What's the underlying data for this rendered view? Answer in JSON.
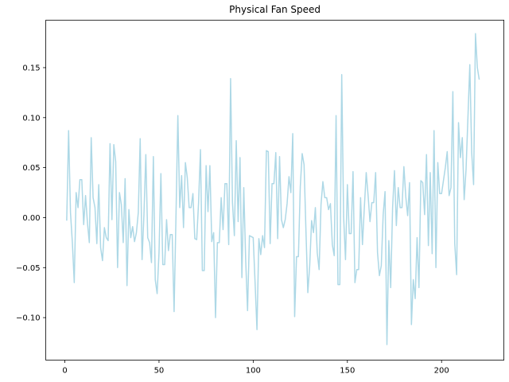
{
  "chart_data": {
    "type": "line",
    "title": "Physical Fan Speed",
    "xlabel": "",
    "ylabel": "",
    "xlim": [
      -10.1,
      233.1
    ],
    "ylim": [
      -0.1425,
      0.1975
    ],
    "x_ticks": [
      0,
      50,
      100,
      150,
      200
    ],
    "x_tick_labels": [
      "0",
      "50",
      "100",
      "150",
      "200"
    ],
    "y_ticks": [
      -0.1,
      -0.05,
      0.0,
      0.05,
      0.1,
      0.15
    ],
    "y_tick_labels": [
      "−0.10",
      "−0.05",
      "0.00",
      "0.05",
      "0.10",
      "0.15"
    ],
    "grid": false,
    "series": [
      {
        "color": "#add8e6",
        "x_start": 1,
        "x_step": 1,
        "values": [
          -0.003,
          0.087,
          0.005,
          -0.025,
          -0.065,
          0.025,
          0.01,
          0.038,
          0.038,
          -0.007,
          0.022,
          -0.005,
          -0.025,
          0.08,
          0.02,
          0.01,
          -0.026,
          0.033,
          -0.03,
          -0.043,
          -0.01,
          -0.02,
          -0.023,
          0.074,
          -0.002,
          0.073,
          0.056,
          -0.05,
          0.025,
          0.013,
          -0.025,
          0.039,
          -0.068,
          0.008,
          -0.02,
          -0.009,
          -0.024,
          -0.015,
          0.005,
          0.079,
          -0.042,
          0.003,
          0.063,
          -0.02,
          -0.025,
          -0.045,
          0.061,
          -0.062,
          -0.076,
          -0.035,
          0.044,
          -0.047,
          -0.047,
          -0.002,
          -0.033,
          -0.017,
          -0.017,
          -0.094,
          0.001,
          0.102,
          0.01,
          0.042,
          -0.01,
          0.055,
          0.04,
          0.01,
          0.01,
          0.024,
          -0.021,
          -0.022,
          0.015,
          0.068,
          -0.053,
          -0.053,
          0.052,
          0.006,
          0.052,
          -0.024,
          -0.015,
          -0.1,
          -0.025,
          -0.025,
          0.02,
          -0.012,
          0.034,
          0.034,
          -0.027,
          0.139,
          0.015,
          -0.018,
          0.077,
          -0.004,
          0.06,
          -0.06,
          0.03,
          -0.042,
          -0.093,
          -0.018,
          -0.019,
          -0.02,
          -0.065,
          -0.112,
          -0.021,
          -0.037,
          -0.018,
          -0.03,
          0.067,
          0.066,
          -0.026,
          0.034,
          0.034,
          0.065,
          -0.021,
          0.061,
          -0.002,
          -0.01,
          -0.002,
          0.014,
          0.041,
          0.025,
          0.084,
          -0.099,
          -0.039,
          -0.039,
          0.031,
          0.064,
          0.053,
          -0.013,
          -0.075,
          -0.048,
          -0.003,
          -0.015,
          0.01,
          -0.035,
          -0.052,
          0.013,
          0.036,
          0.02,
          0.02,
          0.008,
          0.014,
          -0.027,
          -0.038,
          0.102,
          -0.067,
          -0.067,
          0.143,
          0.001,
          -0.042,
          0.033,
          -0.016,
          -0.016,
          0.046,
          -0.065,
          -0.052,
          -0.052,
          0.02,
          -0.027,
          0.01,
          0.045,
          0.022,
          -0.004,
          0.015,
          0.015,
          0.045,
          -0.035,
          -0.058,
          -0.048,
          0.003,
          0.026,
          -0.127,
          -0.023,
          -0.07,
          0.01,
          0.047,
          -0.008,
          0.03,
          0.01,
          0.01,
          0.051,
          0.021,
          0.002,
          0.035,
          -0.107,
          -0.062,
          -0.081,
          -0.02,
          -0.07,
          0.037,
          0.035,
          0.003,
          0.063,
          -0.028,
          0.045,
          -0.036,
          0.087,
          -0.05,
          0.055,
          0.024,
          0.024,
          0.037,
          0.05,
          0.066,
          0.022,
          0.03,
          0.126,
          -0.026,
          -0.057,
          0.095,
          0.06,
          0.08,
          0.018,
          0.048,
          0.1,
          0.153,
          0.065,
          0.033,
          0.184,
          0.15,
          0.138
        ]
      }
    ]
  }
}
